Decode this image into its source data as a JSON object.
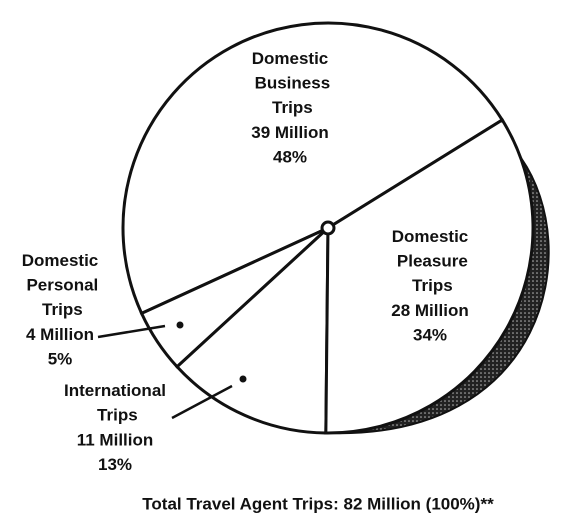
{
  "chart_data": {
    "type": "pie",
    "categories": [
      "Domestic Business Trips",
      "Domestic Personal Trips",
      "International Trips",
      "Domestic Pleasure Trips"
    ],
    "values": [
      48,
      5,
      13,
      34
    ],
    "value_labels": [
      "48%",
      "5%",
      "13%",
      "34%"
    ],
    "millions": [
      39,
      4,
      11,
      28
    ],
    "millions_labels": [
      "39 Million",
      "4 Million",
      "11 Million",
      "28 Million"
    ],
    "color": "#ffffff",
    "footer": "Total Travel Agent Trips: 82 Million (100%)**"
  }
}
